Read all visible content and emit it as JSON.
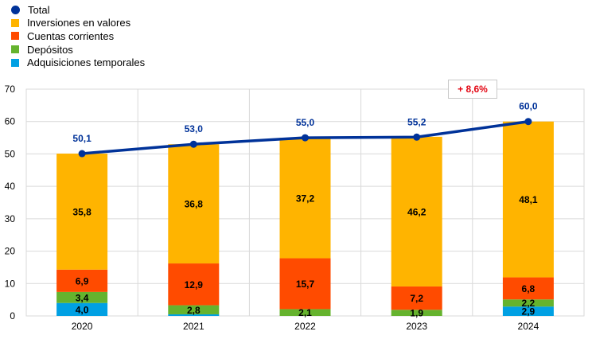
{
  "chart_data": {
    "type": "bar",
    "stacked": true,
    "categories": [
      "2020",
      "2021",
      "2022",
      "2023",
      "2024"
    ],
    "ylim": [
      0,
      70
    ],
    "yticks": [
      0,
      10,
      20,
      30,
      40,
      50,
      60,
      70
    ],
    "grid": true,
    "legend_position": "top-left",
    "series": [
      {
        "name": "Adquisiciones temporales",
        "color": "#00a0e3",
        "values": [
          4.0,
          0.5,
          0.0,
          0.0,
          2.9
        ],
        "labels": [
          "4,0",
          "",
          "",
          "",
          "2,9"
        ]
      },
      {
        "name": "Depósitos",
        "color": "#65b32e",
        "values": [
          3.4,
          2.8,
          2.1,
          1.9,
          2.2
        ],
        "labels": [
          "3,4",
          "2,8",
          "2,1",
          "1,9",
          "2,2"
        ]
      },
      {
        "name": "Cuentas corrientes",
        "color": "#ff4b00",
        "values": [
          6.9,
          12.9,
          15.7,
          7.2,
          6.8
        ],
        "labels": [
          "6,9",
          "12,9",
          "15,7",
          "7,2",
          "6,8"
        ]
      },
      {
        "name": "Inversiones en valores",
        "color": "#ffb400",
        "values": [
          35.8,
          36.8,
          37.2,
          46.2,
          48.1
        ],
        "labels": [
          "35,8",
          "36,8",
          "37,2",
          "46,2",
          "48,1"
        ]
      }
    ],
    "line": {
      "name": "Total",
      "color": "#003299",
      "values": [
        50.1,
        53.0,
        55.0,
        55.2,
        60.0
      ],
      "labels": [
        "50,1",
        "53,0",
        "55,0",
        "55,2",
        "60,0"
      ]
    },
    "annotation": "+ 8,6%"
  }
}
